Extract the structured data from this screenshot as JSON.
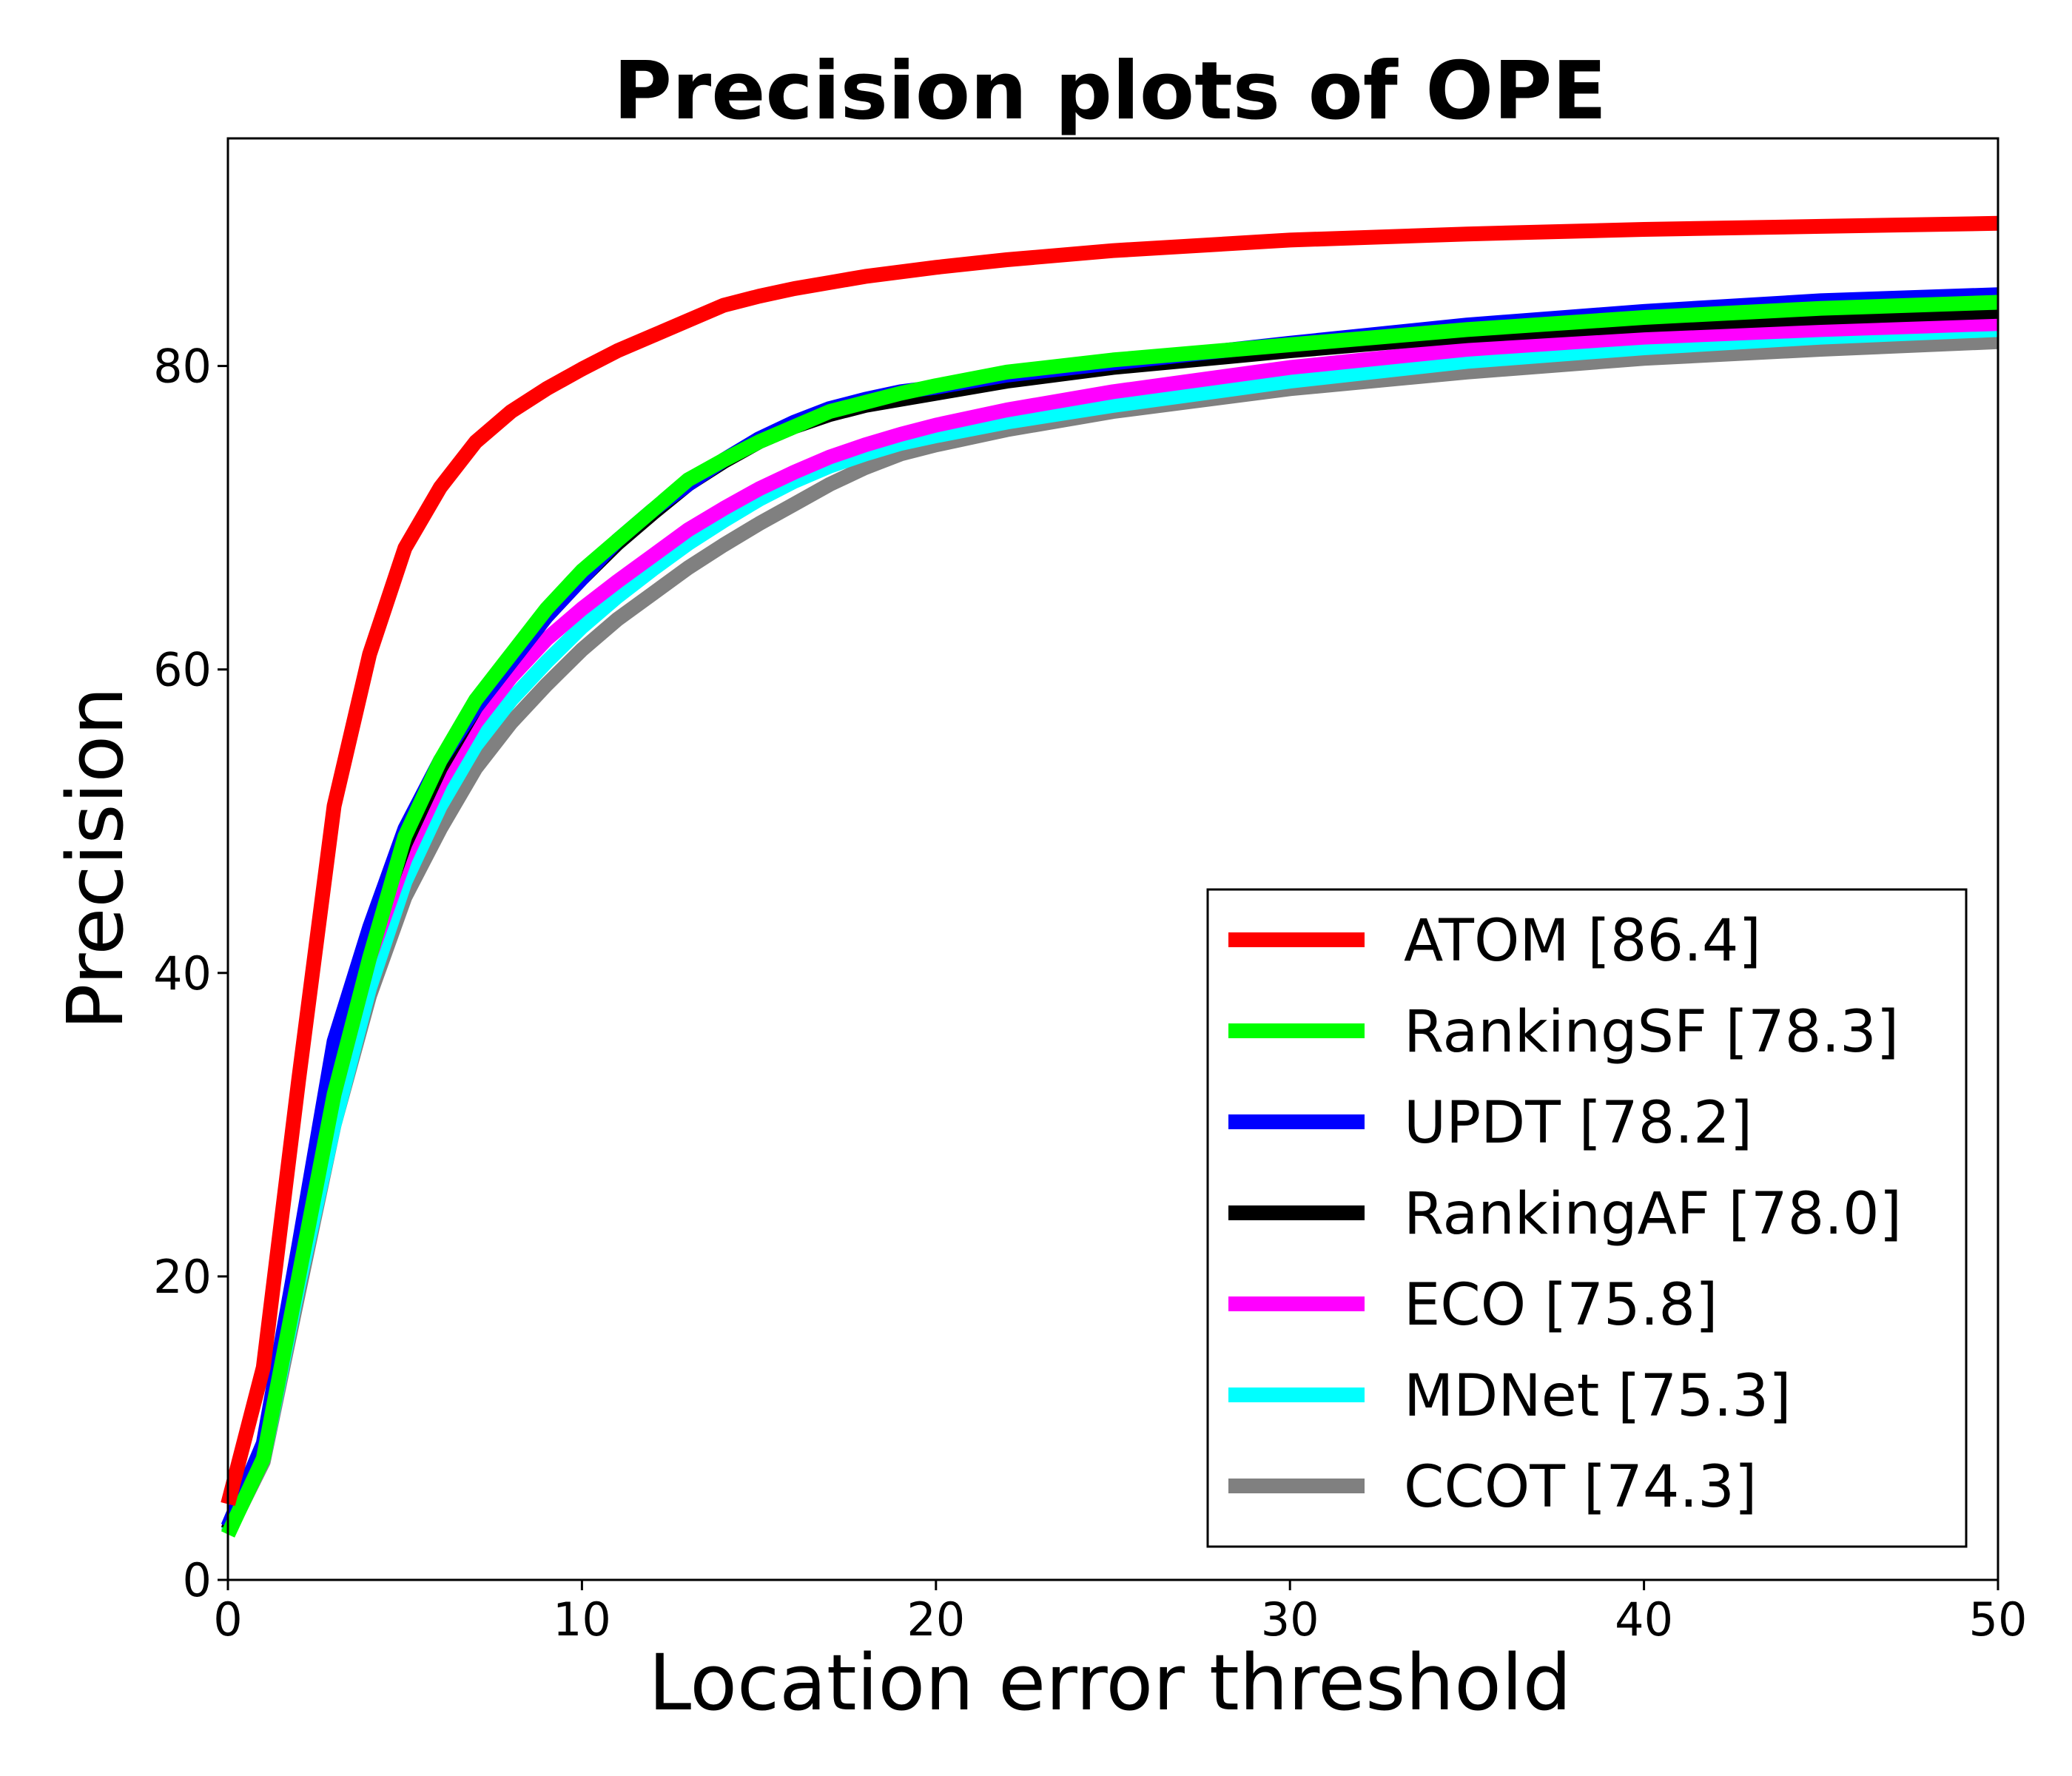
{
  "chart_data": {
    "type": "line",
    "title": "Precision plots of OPE",
    "xlabel": "Location error threshold",
    "ylabel": "Precision",
    "xlim": [
      0,
      50
    ],
    "ylim": [
      0,
      95
    ],
    "xticks": [
      0,
      10,
      20,
      30,
      40,
      50
    ],
    "yticks": [
      0,
      20,
      40,
      60,
      80
    ],
    "grid": false,
    "legend_position": "lower-right",
    "x": [
      0,
      1,
      2,
      3,
      4,
      5,
      6,
      7,
      8,
      9,
      10,
      11,
      12,
      13,
      14,
      15,
      16,
      17,
      18,
      19,
      20,
      22,
      25,
      30,
      35,
      40,
      45,
      50
    ],
    "series": [
      {
        "name": "ATOM [86.4]",
        "color": "#ff0000",
        "values": [
          5,
          14,
          33,
          51,
          61,
          68,
          72,
          75,
          77,
          78.5,
          79.8,
          81,
          82,
          83,
          84,
          84.6,
          85.1,
          85.5,
          85.9,
          86.2,
          86.5,
          87,
          87.6,
          88.3,
          88.7,
          89,
          89.2,
          89.4
        ]
      },
      {
        "name": "RankingSF [78.3]",
        "color": "#00ff00",
        "values": [
          3,
          8,
          20,
          32,
          41,
          49,
          54,
          58,
          61,
          64,
          66.5,
          68.5,
          70.5,
          72.5,
          73.8,
          75,
          76,
          77,
          77.6,
          78.2,
          78.7,
          79.6,
          80.4,
          81.4,
          82.4,
          83.2,
          83.8,
          84.2
        ]
      },
      {
        "name": "UPDT [78.2]",
        "color": "#0000ff",
        "values": [
          3.5,
          9,
          22,
          35.5,
          43,
          49.5,
          54,
          57.5,
          60.5,
          63.5,
          66,
          68.5,
          70.5,
          72.2,
          73.8,
          75.2,
          76.3,
          77.2,
          77.8,
          78.3,
          78.6,
          79.4,
          80.2,
          81.5,
          82.7,
          83.6,
          84.3,
          84.7
        ]
      },
      {
        "name": "RankingAF [78.0]",
        "color": "#000000",
        "values": [
          3.3,
          8.5,
          21,
          33,
          42,
          48.5,
          53.5,
          57.5,
          60.5,
          63.5,
          66,
          68.3,
          70.3,
          72.2,
          73.7,
          75,
          76,
          76.8,
          77.4,
          77.8,
          78.2,
          79,
          79.9,
          81,
          82,
          82.7,
          83.2,
          83.6
        ]
      },
      {
        "name": "ECO [75.8]",
        "color": "#ff00ff",
        "values": [
          3.3,
          8.5,
          21,
          32,
          41,
          47.5,
          52.5,
          56.5,
          59.5,
          62,
          64,
          65.8,
          67.5,
          69.2,
          70.6,
          71.9,
          73,
          74,
          74.8,
          75.5,
          76.1,
          77.1,
          78.3,
          79.9,
          81.1,
          81.9,
          82.4,
          82.8
        ]
      },
      {
        "name": "MDNet [75.3]",
        "color": "#00ffff",
        "values": [
          3.2,
          8,
          19.5,
          30,
          39,
          46,
          51,
          55,
          58,
          60.5,
          62.8,
          64.8,
          66.6,
          68.3,
          69.8,
          71.2,
          72.4,
          73.4,
          74.2,
          74.9,
          75.4,
          76.3,
          77.4,
          79,
          80.3,
          81.2,
          81.9,
          82.4
        ]
      },
      {
        "name": "CCOT [74.3]",
        "color": "#808080",
        "values": [
          3.1,
          7.8,
          19,
          30,
          38.5,
          45,
          49.5,
          53.5,
          56.5,
          59,
          61.3,
          63.3,
          65,
          66.7,
          68.2,
          69.6,
          70.9,
          72.2,
          73.3,
          74.2,
          74.8,
          75.8,
          77,
          78.5,
          79.6,
          80.5,
          81.1,
          81.6
        ]
      }
    ]
  }
}
